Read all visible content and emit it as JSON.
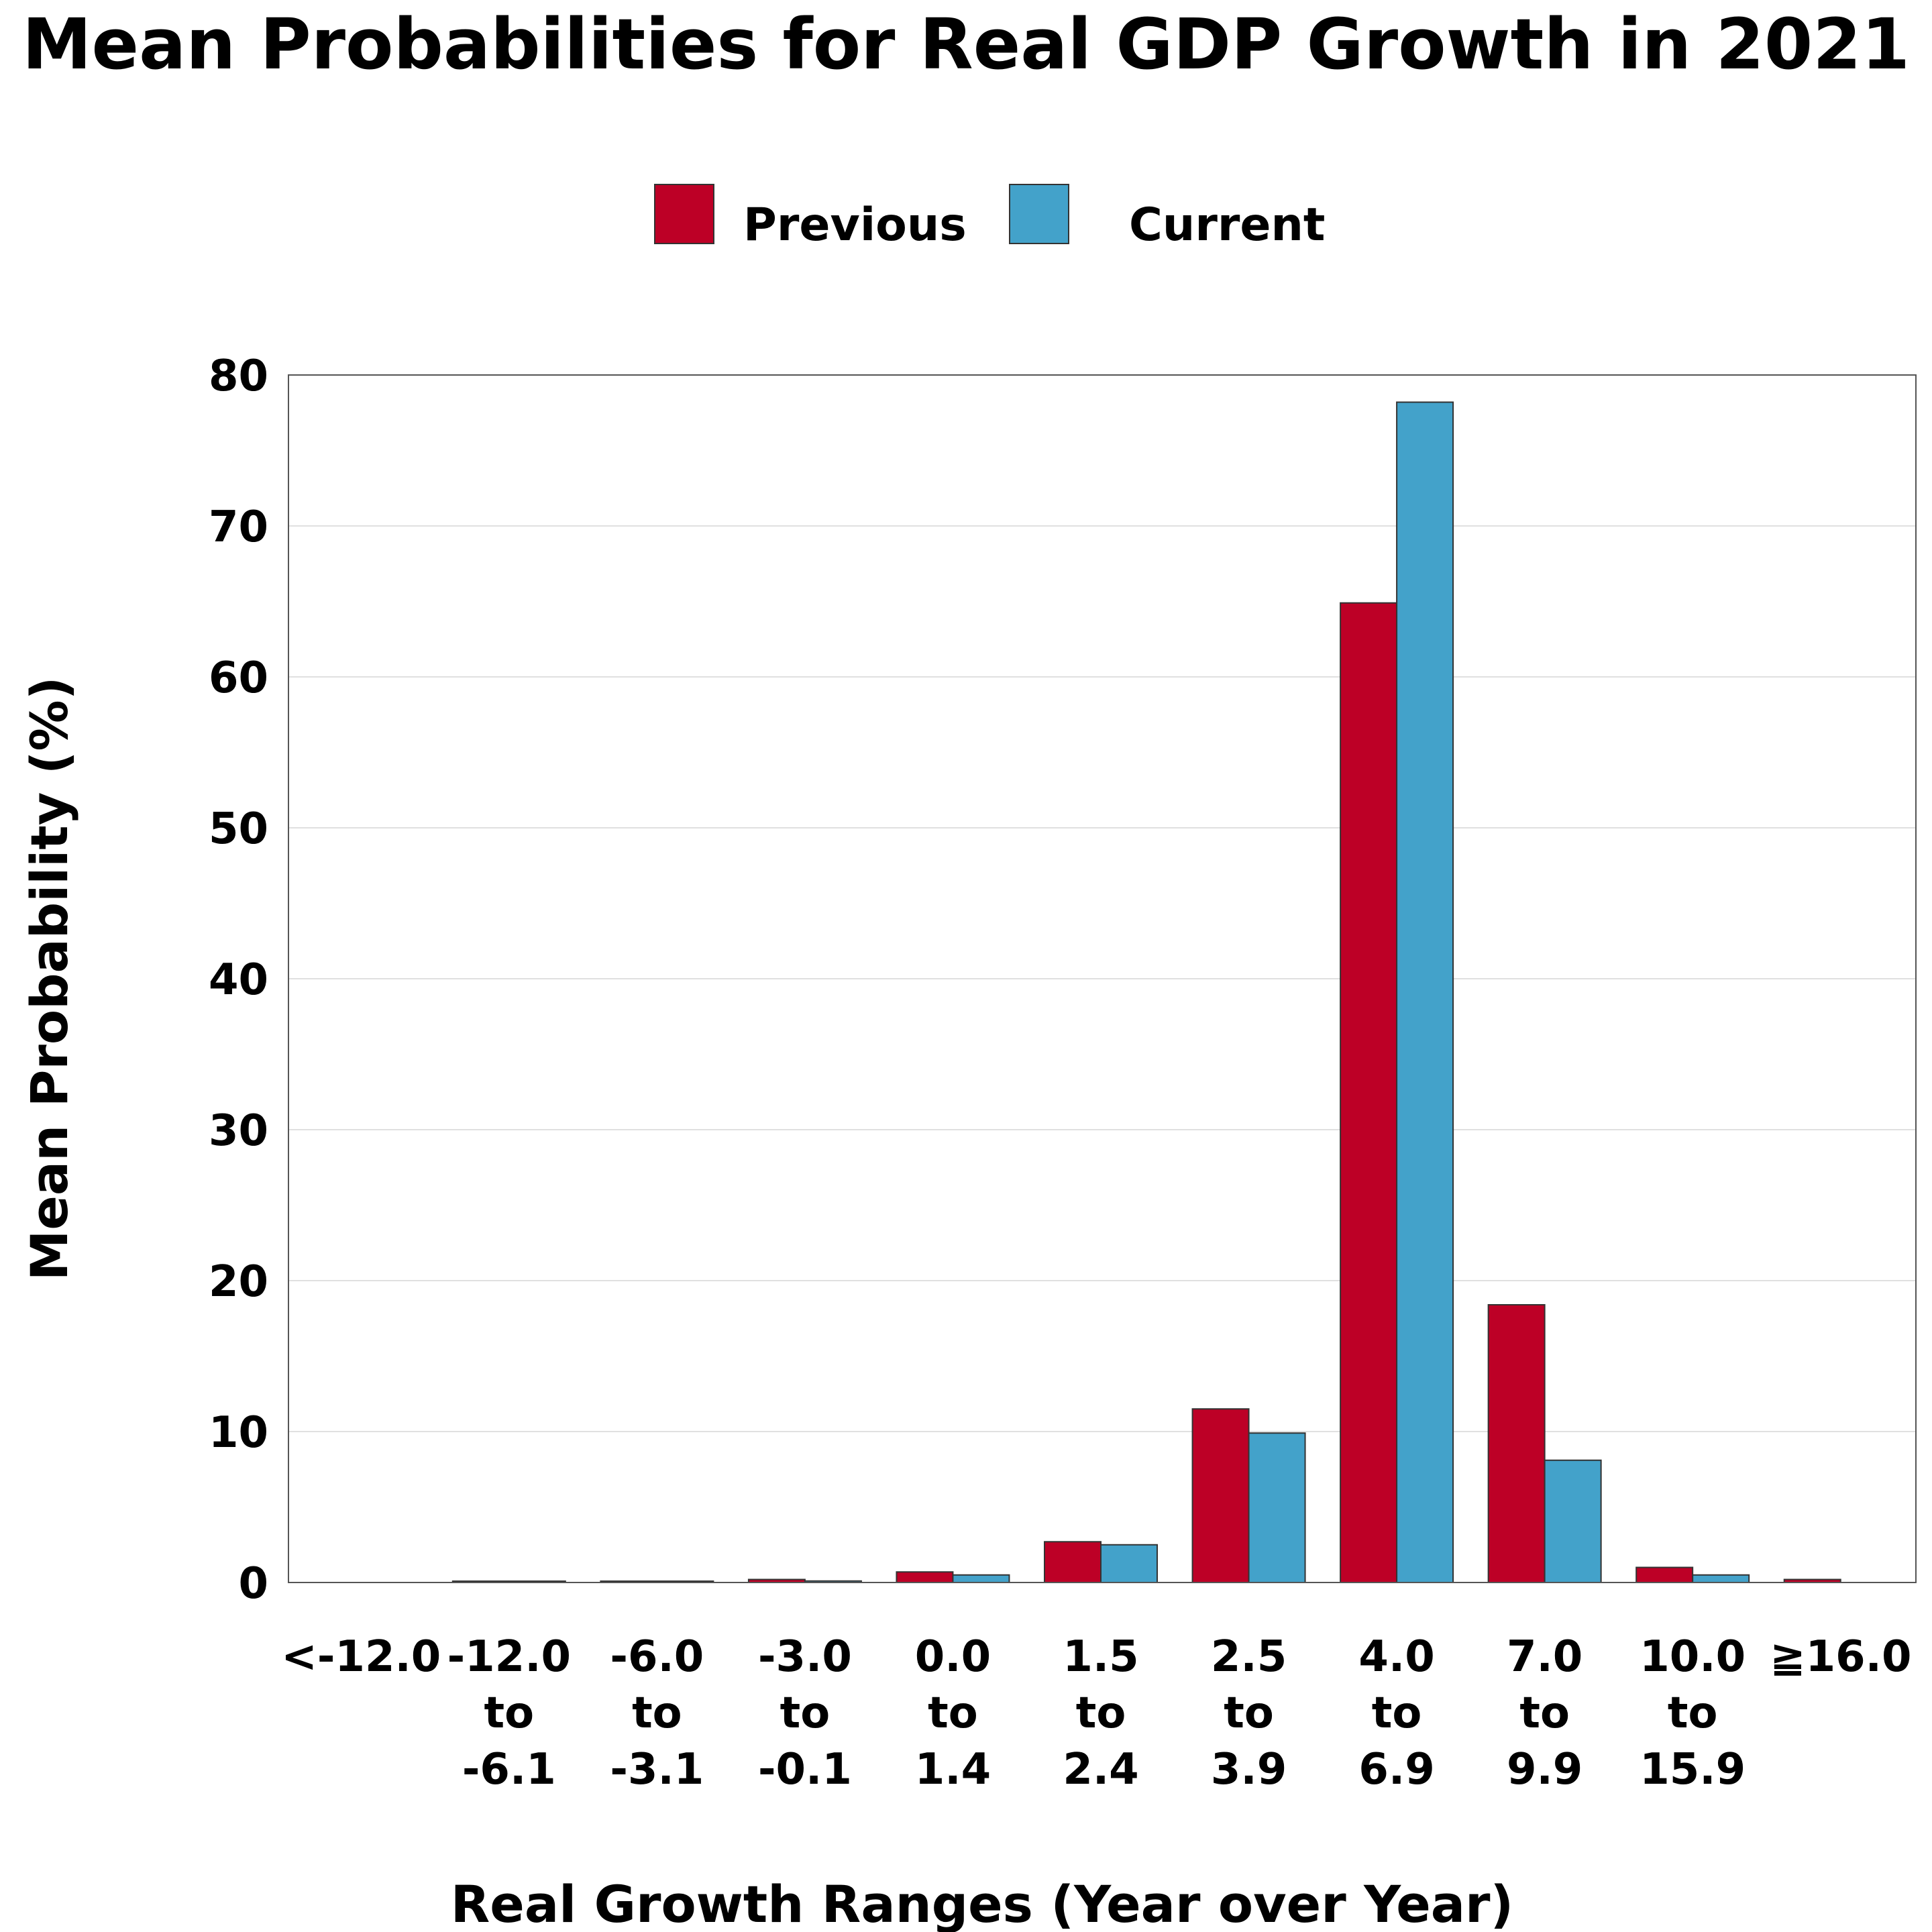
{
  "chart_data": {
    "type": "bar",
    "title": "Mean Probabilities for Real GDP Growth in 2021",
    "xlabel": "Real Growth Ranges (Year over Year)",
    "ylabel": "Mean Probability (%)",
    "ylim": [
      0,
      80
    ],
    "yticks": [
      "0",
      "10",
      "20",
      "30",
      "40",
      "50",
      "60",
      "70",
      "80"
    ],
    "grid": true,
    "legend_position": "top-center",
    "categories": [
      [
        "<-12.0"
      ],
      [
        "-12.0",
        "to",
        "-6.1"
      ],
      [
        "-6.0",
        "to",
        "-3.1"
      ],
      [
        "-3.0",
        "to",
        "-0.1"
      ],
      [
        "0.0",
        "to",
        "1.4"
      ],
      [
        "1.5",
        "to",
        "2.4"
      ],
      [
        "2.5",
        "to",
        "3.9"
      ],
      [
        "4.0",
        "to",
        "6.9"
      ],
      [
        "7.0",
        "to",
        "9.9"
      ],
      [
        "10.0",
        "to",
        "15.9"
      ],
      [
        "≧16.0"
      ]
    ],
    "series": [
      {
        "name": "Previous",
        "color": "#BD0026",
        "values": [
          0.0,
          0.05,
          0.05,
          0.2,
          0.7,
          2.7,
          11.5,
          64.9,
          18.4,
          1.0,
          0.2
        ]
      },
      {
        "name": "Current",
        "color": "#43A2CA",
        "values": [
          0.0,
          0.05,
          0.05,
          0.1,
          0.5,
          2.5,
          9.9,
          78.2,
          8.1,
          0.5,
          0.0
        ]
      }
    ]
  }
}
